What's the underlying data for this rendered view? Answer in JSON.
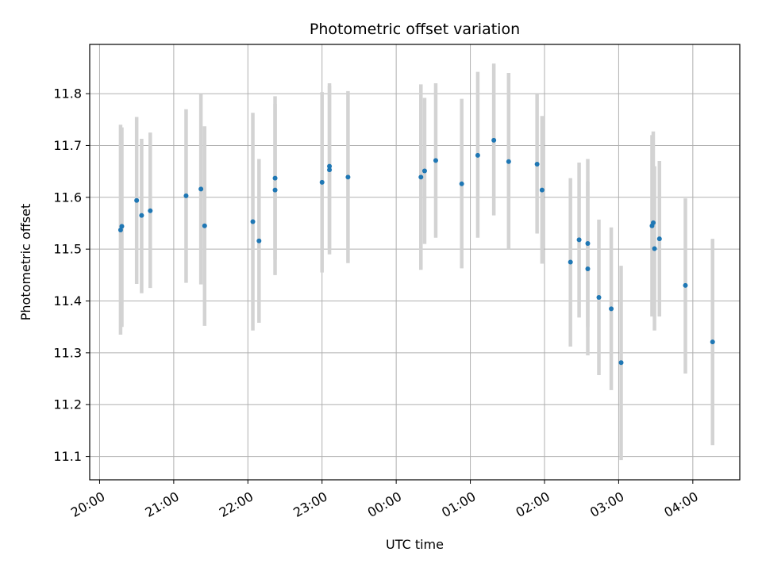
{
  "chart_data": {
    "type": "scatter",
    "title": "Photometric offset variation",
    "xlabel": "UTC time",
    "ylabel": "Photometric offset",
    "grid": true,
    "legend": "none",
    "xlim": [
      "19:52",
      "04:38"
    ],
    "ylim": [
      11.055,
      11.895
    ],
    "x_ticks": [
      "20:00",
      "21:00",
      "22:00",
      "23:00",
      "00:00",
      "01:00",
      "02:00",
      "03:00",
      "04:00"
    ],
    "y_ticks": [
      11.1,
      11.2,
      11.3,
      11.4,
      11.5,
      11.6,
      11.7,
      11.8
    ],
    "colors": {
      "point": "#1f77b4",
      "errorbar": "#d3d3d3",
      "grid": "#b0b0b0"
    },
    "points": [
      {
        "x": "20:17",
        "y": 11.537,
        "lo": 11.335,
        "hi": 11.74
      },
      {
        "x": "20:18",
        "y": 11.544,
        "lo": 11.35,
        "hi": 11.735
      },
      {
        "x": "20:30",
        "y": 11.594,
        "lo": 11.433,
        "hi": 11.755
      },
      {
        "x": "20:34",
        "y": 11.565,
        "lo": 11.415,
        "hi": 11.713
      },
      {
        "x": "20:41",
        "y": 11.574,
        "lo": 11.425,
        "hi": 11.725
      },
      {
        "x": "21:10",
        "y": 11.603,
        "lo": 11.435,
        "hi": 11.77
      },
      {
        "x": "21:22",
        "y": 11.616,
        "lo": 11.432,
        "hi": 11.8
      },
      {
        "x": "21:25",
        "y": 11.545,
        "lo": 11.352,
        "hi": 11.737
      },
      {
        "x": "22:04",
        "y": 11.553,
        "lo": 11.343,
        "hi": 11.763
      },
      {
        "x": "22:09",
        "y": 11.516,
        "lo": 11.358,
        "hi": 11.674
      },
      {
        "x": "22:22",
        "y": 11.614,
        "lo": 11.45,
        "hi": 11.78
      },
      {
        "x": "22:22",
        "y": 11.637,
        "lo": 11.48,
        "hi": 11.795
      },
      {
        "x": "23:00",
        "y": 11.629,
        "lo": 11.455,
        "hi": 11.803
      },
      {
        "x": "23:06",
        "y": 11.66,
        "lo": 11.5,
        "hi": 11.82
      },
      {
        "x": "23:06",
        "y": 11.653,
        "lo": 11.49,
        "hi": 11.815
      },
      {
        "x": "23:21",
        "y": 11.639,
        "lo": 11.473,
        "hi": 11.805
      },
      {
        "x": "00:20",
        "y": 11.639,
        "lo": 11.46,
        "hi": 11.818
      },
      {
        "x": "00:23",
        "y": 11.651,
        "lo": 11.51,
        "hi": 11.792
      },
      {
        "x": "00:32",
        "y": 11.671,
        "lo": 11.522,
        "hi": 11.82
      },
      {
        "x": "00:53",
        "y": 11.626,
        "lo": 11.463,
        "hi": 11.79
      },
      {
        "x": "01:06",
        "y": 11.681,
        "lo": 11.522,
        "hi": 11.842
      },
      {
        "x": "01:19",
        "y": 11.71,
        "lo": 11.565,
        "hi": 11.858
      },
      {
        "x": "01:31",
        "y": 11.669,
        "lo": 11.5,
        "hi": 11.84
      },
      {
        "x": "01:54",
        "y": 11.664,
        "lo": 11.53,
        "hi": 11.8
      },
      {
        "x": "01:58",
        "y": 11.614,
        "lo": 11.472,
        "hi": 11.757
      },
      {
        "x": "02:21",
        "y": 11.475,
        "lo": 11.312,
        "hi": 11.637
      },
      {
        "x": "02:28",
        "y": 11.518,
        "lo": 11.368,
        "hi": 11.667
      },
      {
        "x": "02:35",
        "y": 11.511,
        "lo": 11.35,
        "hi": 11.674
      },
      {
        "x": "02:35",
        "y": 11.462,
        "lo": 11.295,
        "hi": 11.63
      },
      {
        "x": "02:44",
        "y": 11.407,
        "lo": 11.257,
        "hi": 11.557
      },
      {
        "x": "02:54",
        "y": 11.385,
        "lo": 11.228,
        "hi": 11.542
      },
      {
        "x": "03:02",
        "y": 11.281,
        "lo": 11.093,
        "hi": 11.468
      },
      {
        "x": "03:27",
        "y": 11.545,
        "lo": 11.37,
        "hi": 11.72
      },
      {
        "x": "03:28",
        "y": 11.551,
        "lo": 11.375,
        "hi": 11.727
      },
      {
        "x": "03:29",
        "y": 11.501,
        "lo": 11.343,
        "hi": 11.66
      },
      {
        "x": "03:33",
        "y": 11.52,
        "lo": 11.37,
        "hi": 11.67
      },
      {
        "x": "03:54",
        "y": 11.43,
        "lo": 11.26,
        "hi": 11.598
      },
      {
        "x": "04:16",
        "y": 11.321,
        "lo": 11.122,
        "hi": 11.52
      }
    ]
  }
}
